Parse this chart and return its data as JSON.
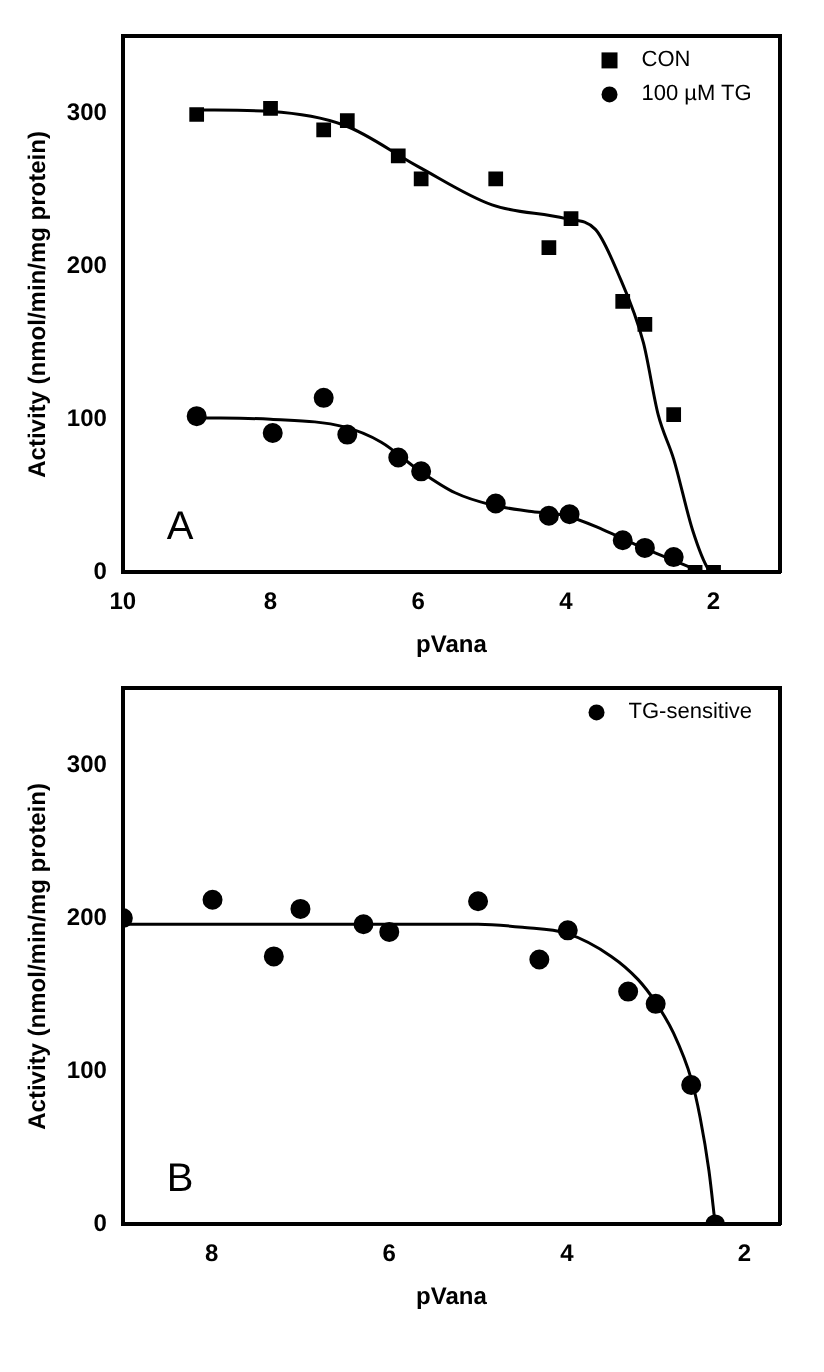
{
  "chart_data": [
    {
      "type": "scatter",
      "xlabel": "pVana",
      "ylabel": "Activity (nmol/min/mg protein)",
      "annotations": [
        "A"
      ],
      "xlim": [
        10,
        1.1
      ],
      "xticks": [
        10,
        8,
        6,
        4,
        2
      ],
      "ylim": [
        0,
        350
      ],
      "yticks": [
        0,
        100,
        200,
        300
      ],
      "grid": false,
      "legend": "top right",
      "series": [
        {
          "name": "CON",
          "color": "#000000",
          "marker": "square",
          "x": [
            9,
            8,
            7.28,
            6.96,
            6.27,
            5.96,
            4.95,
            4.23,
            3.93,
            3.23,
            2.93,
            2.54,
            2.25,
            2
          ],
          "values": [
            299,
            303,
            289,
            295,
            272,
            257,
            257,
            212,
            231,
            177,
            162,
            103,
            0,
            0
          ]
        },
        {
          "name": "100 µM TG",
          "color": "#000000",
          "marker": "circle",
          "x": [
            9,
            7.97,
            7.28,
            6.96,
            6.27,
            5.96,
            4.95,
            4.23,
            3.95,
            3.23,
            2.93,
            2.54
          ],
          "values": [
            102,
            91,
            114,
            90,
            75,
            66,
            45,
            37,
            38,
            21,
            16,
            10
          ]
        },
        {
          "type": "line",
          "color": "#000000",
          "marker": "none",
          "line_style": "solid",
          "x": [
            9,
            8,
            7,
            6,
            5,
            4,
            3.6,
            3.3,
            2.95,
            2.75,
            2.54,
            2.28,
            2.07,
            2
          ],
          "values": [
            302,
            301,
            292,
            265,
            240,
            231,
            224,
            196,
            150,
            103,
            74,
            27,
            2,
            0
          ]
        },
        {
          "type": "line",
          "color": "#000000",
          "marker": "none",
          "line_style": "solid",
          "x": [
            9,
            8,
            7,
            6.5,
            6,
            5.5,
            5,
            4.5,
            4,
            3.5,
            3,
            2.5,
            2.2
          ],
          "values": [
            101,
            100,
            95,
            85,
            67,
            52,
            44,
            40,
            37,
            28,
            17,
            7,
            1
          ]
        }
      ]
    },
    {
      "type": "scatter",
      "xlabel": "pVana",
      "ylabel": "Activity (nmol/min/mg protein)",
      "annotations": [
        "B"
      ],
      "xlim": [
        9,
        1.6
      ],
      "xticks": [
        8,
        6,
        4,
        2
      ],
      "ylim": [
        0,
        350
      ],
      "yticks": [
        0,
        100,
        200,
        300
      ],
      "grid": false,
      "legend": "top right",
      "series": [
        {
          "name": "TG-sensitive",
          "color": "#000000",
          "marker": "circle",
          "x": [
            9,
            7.99,
            7.3,
            7,
            6.29,
            6,
            5,
            4.31,
            3.99,
            3.31,
            3,
            2.6,
            2.33
          ],
          "values": [
            200,
            212,
            175,
            206,
            196,
            191,
            211,
            173,
            192,
            152,
            144,
            91,
            0
          ]
        },
        {
          "type": "line",
          "color": "#000000",
          "marker": "none",
          "line_style": "solid",
          "x": [
            9,
            8,
            7,
            6,
            5,
            4.5,
            4,
            3.5,
            3.2,
            3,
            2.8,
            2.6,
            2.5,
            2.4,
            2.33
          ],
          "values": [
            196,
            196,
            196,
            196,
            196,
            194,
            190,
            175,
            160,
            145,
            125,
            95,
            70,
            35,
            0
          ]
        }
      ]
    }
  ]
}
